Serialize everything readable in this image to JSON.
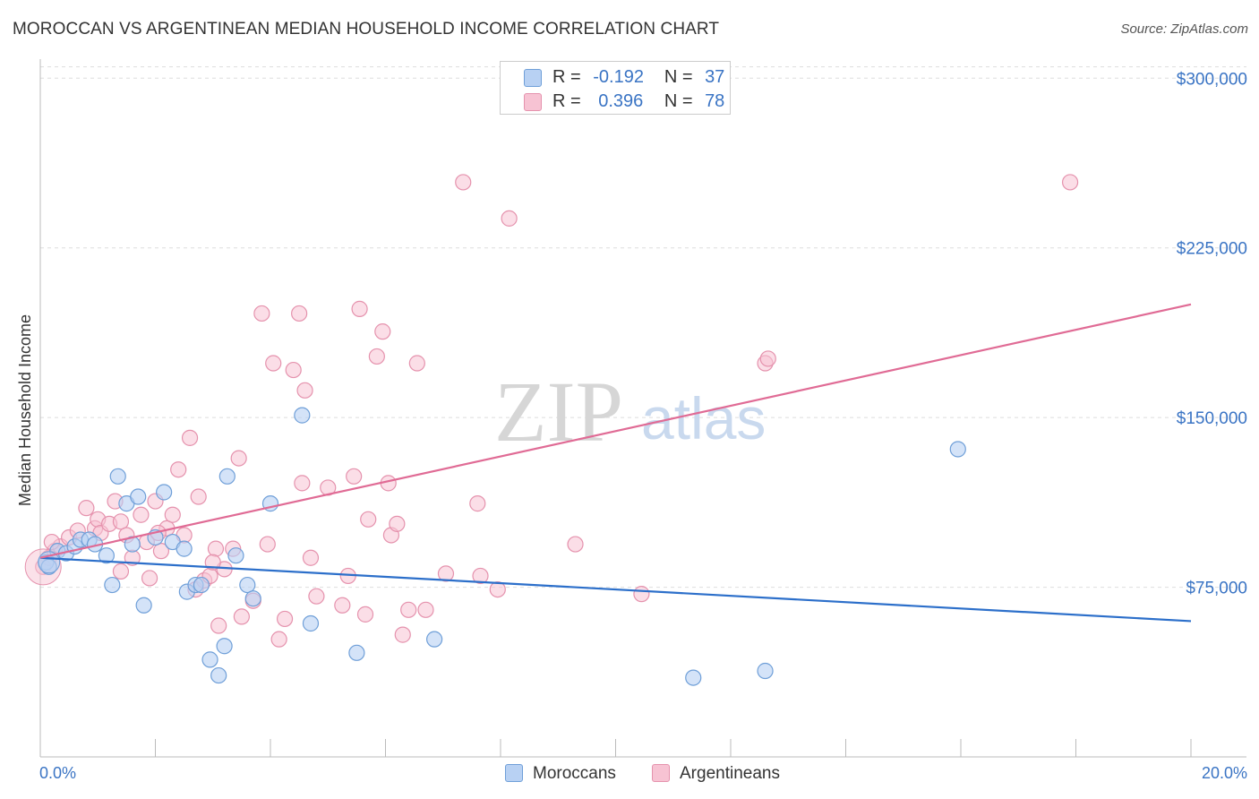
{
  "title": "MOROCCAN VS ARGENTINEAN MEDIAN HOUSEHOLD INCOME CORRELATION CHART",
  "source": "Source: ZipAtlas.com",
  "watermark": {
    "zip": "ZIP",
    "atlas": "atlas"
  },
  "colors": {
    "blue_fill": "#b8d1f3",
    "blue_stroke": "#6f9fd8",
    "blue_line": "#2c6fca",
    "pink_fill": "#f7c3d3",
    "pink_stroke": "#e592ad",
    "pink_line": "#e06b95",
    "tick_text": "#3a74c4",
    "grid": "#dddddd"
  },
  "legend": {
    "rows": [
      {
        "r_label": "R =",
        "r_value": "-0.192",
        "n_label": "N =",
        "n_value": "37"
      },
      {
        "r_label": "R =",
        "r_value": "0.396",
        "n_label": "N =",
        "n_value": "78"
      }
    ]
  },
  "bottom_legend": [
    "Moroccans",
    "Argentineans"
  ],
  "chart_data": {
    "type": "scatter",
    "title": "MOROCCAN VS ARGENTINEAN MEDIAN HOUSEHOLD INCOME CORRELATION CHART",
    "xlabel": "",
    "ylabel": "Median Household Income",
    "xlim": [
      0,
      20
    ],
    "ylim": [
      0,
      310000
    ],
    "x_tick_labels": [
      "0.0%",
      "20.0%"
    ],
    "y_ticks": [
      75000,
      150000,
      225000,
      300000
    ],
    "y_tick_labels": [
      "$75,000",
      "$150,000",
      "$225,000",
      "$300,000"
    ],
    "grid": true,
    "legend_position": "top-center",
    "series": [
      {
        "name": "Moroccans",
        "color": "#6f9fd8",
        "r": -0.192,
        "n": 37,
        "trend": {
          "x": [
            0,
            20
          ],
          "y": [
            88000,
            60000
          ]
        },
        "points": [
          [
            0.1,
            86000
          ],
          [
            0.15,
            84000
          ],
          [
            0.3,
            91000
          ],
          [
            0.45,
            90000
          ],
          [
            0.6,
            93000
          ],
          [
            0.7,
            96000
          ],
          [
            0.85,
            96000
          ],
          [
            0.95,
            94000
          ],
          [
            1.15,
            89000
          ],
          [
            1.25,
            76000
          ],
          [
            1.35,
            124000
          ],
          [
            1.5,
            112000
          ],
          [
            1.6,
            94000
          ],
          [
            1.7,
            115000
          ],
          [
            1.8,
            67000
          ],
          [
            2.0,
            97000
          ],
          [
            2.15,
            117000
          ],
          [
            2.3,
            95000
          ],
          [
            2.5,
            92000
          ],
          [
            2.55,
            73000
          ],
          [
            2.7,
            76000
          ],
          [
            2.8,
            76000
          ],
          [
            2.95,
            43000
          ],
          [
            3.1,
            36000
          ],
          [
            3.2,
            49000
          ],
          [
            3.25,
            124000
          ],
          [
            3.4,
            89000
          ],
          [
            3.6,
            76000
          ],
          [
            3.7,
            70000
          ],
          [
            4.0,
            112000
          ],
          [
            4.55,
            151000
          ],
          [
            4.7,
            59000
          ],
          [
            5.5,
            46000
          ],
          [
            6.85,
            52000
          ],
          [
            11.35,
            35000
          ],
          [
            12.6,
            38000
          ],
          [
            15.95,
            136000
          ]
        ]
      },
      {
        "name": "Argentineans",
        "color": "#e592ad",
        "r": 0.396,
        "n": 78,
        "trend": {
          "x": [
            0,
            20
          ],
          "y": [
            88000,
            200000
          ]
        },
        "points": [
          [
            0.05,
            84000
          ],
          [
            0.15,
            88000
          ],
          [
            0.25,
            91000
          ],
          [
            0.35,
            93000
          ],
          [
            0.5,
            97000
          ],
          [
            0.65,
            100000
          ],
          [
            0.8,
            110000
          ],
          [
            0.95,
            101000
          ],
          [
            1.0,
            105000
          ],
          [
            1.05,
            99000
          ],
          [
            1.2,
            103000
          ],
          [
            1.3,
            113000
          ],
          [
            1.4,
            104000
          ],
          [
            1.5,
            98000
          ],
          [
            1.6,
            88000
          ],
          [
            1.75,
            107000
          ],
          [
            1.85,
            95000
          ],
          [
            1.9,
            79000
          ],
          [
            2.0,
            113000
          ],
          [
            2.1,
            91000
          ],
          [
            2.2,
            101000
          ],
          [
            2.3,
            107000
          ],
          [
            2.4,
            127000
          ],
          [
            2.5,
            98000
          ],
          [
            2.6,
            141000
          ],
          [
            2.7,
            74000
          ],
          [
            2.75,
            115000
          ],
          [
            2.85,
            78000
          ],
          [
            2.95,
            80000
          ],
          [
            3.05,
            92000
          ],
          [
            3.1,
            58000
          ],
          [
            3.2,
            83000
          ],
          [
            3.35,
            92000
          ],
          [
            3.45,
            132000
          ],
          [
            3.5,
            62000
          ],
          [
            3.7,
            69000
          ],
          [
            3.85,
            196000
          ],
          [
            3.95,
            94000
          ],
          [
            4.05,
            174000
          ],
          [
            4.15,
            52000
          ],
          [
            4.25,
            61000
          ],
          [
            4.4,
            171000
          ],
          [
            4.5,
            196000
          ],
          [
            4.55,
            121000
          ],
          [
            4.6,
            162000
          ],
          [
            4.7,
            88000
          ],
          [
            4.8,
            71000
          ],
          [
            5.0,
            119000
          ],
          [
            5.25,
            67000
          ],
          [
            5.35,
            80000
          ],
          [
            5.45,
            124000
          ],
          [
            5.55,
            198000
          ],
          [
            5.65,
            63000
          ],
          [
            5.7,
            105000
          ],
          [
            5.85,
            177000
          ],
          [
            5.95,
            188000
          ],
          [
            6.05,
            121000
          ],
          [
            6.1,
            98000
          ],
          [
            6.2,
            103000
          ],
          [
            6.3,
            54000
          ],
          [
            6.4,
            65000
          ],
          [
            6.55,
            174000
          ],
          [
            6.7,
            65000
          ],
          [
            7.05,
            81000
          ],
          [
            7.35,
            254000
          ],
          [
            7.6,
            112000
          ],
          [
            7.65,
            80000
          ],
          [
            7.95,
            74000
          ],
          [
            8.15,
            238000
          ],
          [
            9.3,
            94000
          ],
          [
            10.45,
            72000
          ],
          [
            12.6,
            174000
          ],
          [
            12.65,
            176000
          ],
          [
            17.9,
            254000
          ],
          [
            1.4,
            82000
          ],
          [
            0.2,
            95000
          ],
          [
            2.05,
            99000
          ],
          [
            3.0,
            86000
          ]
        ]
      }
    ]
  }
}
